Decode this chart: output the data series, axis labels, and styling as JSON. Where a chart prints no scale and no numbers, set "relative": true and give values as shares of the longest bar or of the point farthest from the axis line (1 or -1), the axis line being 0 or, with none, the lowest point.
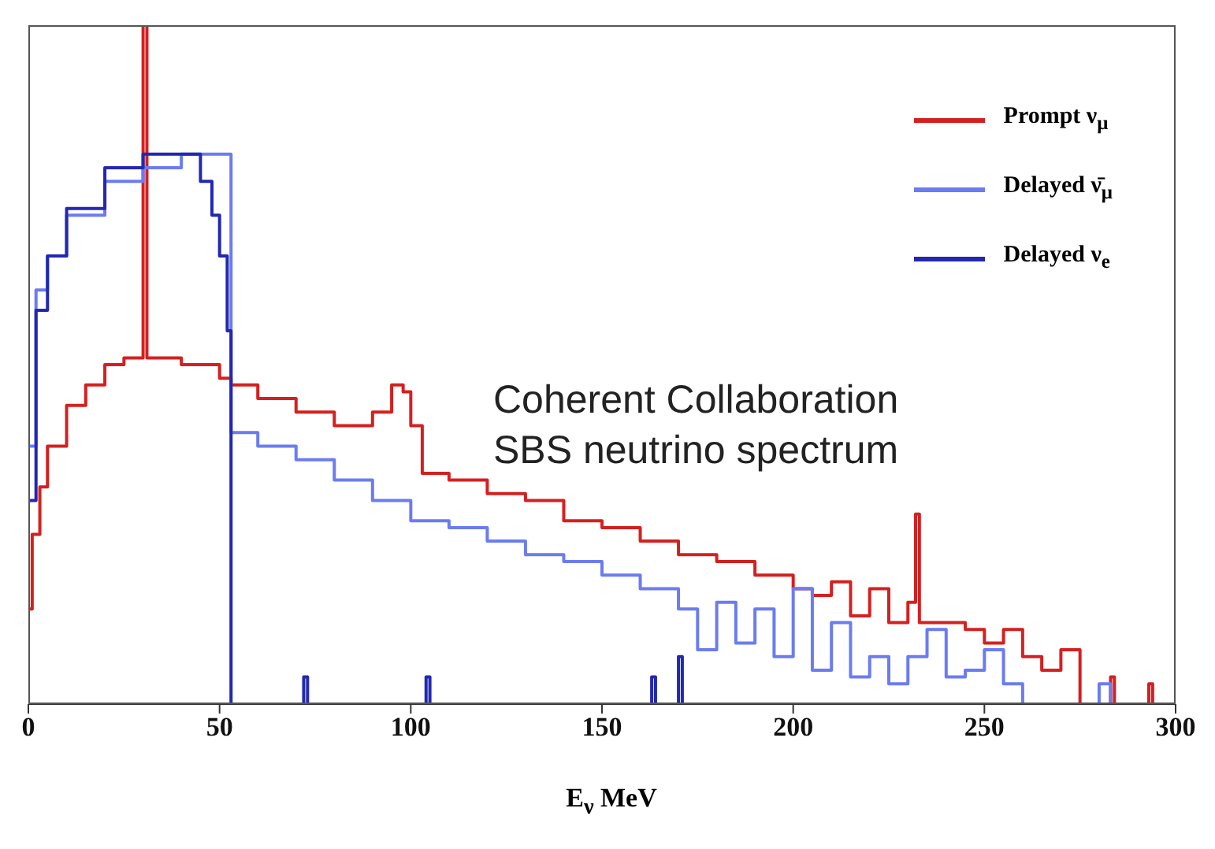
{
  "chart_data": {
    "type": "step",
    "relative": true,
    "xlabel": "E$_{ν}$ MeV",
    "xlim": [
      0,
      300
    ],
    "xticks": [
      0,
      50,
      100,
      150,
      200,
      250,
      300
    ],
    "legend": "top right",
    "annotations": [
      "Coherent Collaboration",
      "SBS neutrino spectrum"
    ],
    "series": [
      {
        "name": "Prompt ν$_{μ}$",
        "color": "#d42020",
        "x": [
          0,
          1,
          3,
          5,
          10,
          15,
          20,
          25,
          30,
          31,
          40,
          50,
          53,
          60,
          70,
          80,
          85,
          90,
          95,
          98,
          100,
          103,
          110,
          120,
          130,
          140,
          150,
          160,
          170,
          180,
          190,
          200,
          205,
          210,
          215,
          220,
          225,
          230,
          232,
          233,
          240,
          245,
          250,
          255,
          260,
          265,
          270,
          275,
          283,
          284,
          293,
          294,
          300
        ],
        "values": [
          0.14,
          0.25,
          0.32,
          0.38,
          0.44,
          0.47,
          0.5,
          0.51,
          1.0,
          0.51,
          0.5,
          0.48,
          0.47,
          0.45,
          0.43,
          0.41,
          0.41,
          0.43,
          0.47,
          0.46,
          0.41,
          0.34,
          0.33,
          0.31,
          0.3,
          0.27,
          0.26,
          0.24,
          0.22,
          0.21,
          0.19,
          0.17,
          0.16,
          0.18,
          0.13,
          0.17,
          0.12,
          0.15,
          0.28,
          0.12,
          0.12,
          0.11,
          0.09,
          0.11,
          0.07,
          0.05,
          0.08,
          0,
          0.04,
          0,
          0.03,
          0,
          0
        ]
      },
      {
        "name": "Delayed ν̄$_{μ}$",
        "color": "#6b7cf0",
        "x": [
          0,
          2,
          5,
          10,
          20,
          30,
          40,
          45,
          52.5,
          53,
          60,
          70,
          80,
          90,
          100,
          110,
          120,
          130,
          140,
          150,
          160,
          170,
          175,
          180,
          185,
          190,
          195,
          200,
          205,
          210,
          215,
          220,
          225,
          230,
          235,
          240,
          245,
          250,
          255,
          260,
          280,
          283,
          300
        ],
        "values": [
          0.38,
          0.61,
          0.66,
          0.72,
          0.77,
          0.79,
          0.81,
          0.81,
          0.81,
          0.4,
          0.38,
          0.36,
          0.33,
          0.3,
          0.27,
          0.26,
          0.24,
          0.22,
          0.21,
          0.19,
          0.17,
          0.14,
          0.08,
          0.15,
          0.09,
          0.14,
          0.07,
          0.17,
          0.05,
          0.12,
          0.04,
          0.07,
          0.03,
          0.07,
          0.11,
          0.04,
          0.05,
          0.08,
          0.03,
          0,
          0.03,
          0,
          0
        ]
      },
      {
        "name": "Delayed ν$_{e}$",
        "color": "#2228b0",
        "x": [
          0,
          2,
          5,
          10,
          20,
          30,
          35,
          40,
          45,
          48,
          50,
          52,
          53,
          72,
          73,
          104,
          105,
          163,
          164,
          170,
          171,
          300
        ],
        "values": [
          0.3,
          0.58,
          0.66,
          0.73,
          0.79,
          0.81,
          0.81,
          0.81,
          0.77,
          0.72,
          0.66,
          0.55,
          0,
          0.04,
          0,
          0.04,
          0,
          0.04,
          0,
          0.07,
          0,
          0
        ]
      }
    ]
  }
}
